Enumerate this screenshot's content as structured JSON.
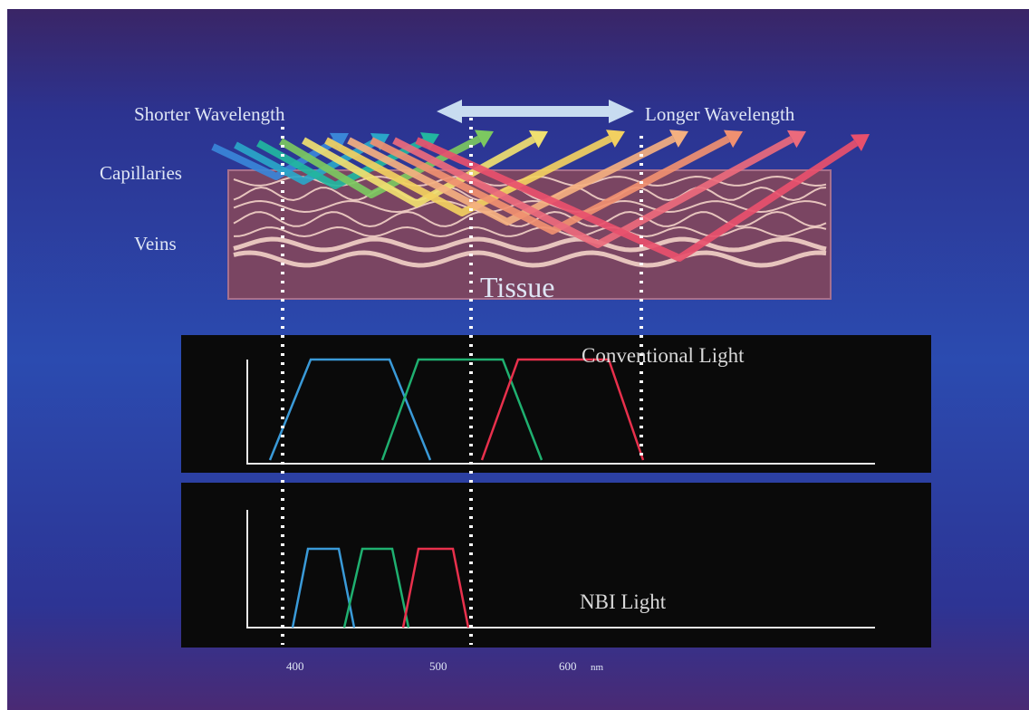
{
  "header": {
    "shorter": "Shorter Wavelength",
    "longer": "Longer Wavelength"
  },
  "layers": {
    "capillaries": "Capillaries",
    "veins": "Veins",
    "tissue": "Tissue"
  },
  "panels": {
    "conventional": "Conventional Light",
    "nbi": "NBI Light"
  },
  "axis": {
    "ticks": [
      "400",
      "500",
      "600"
    ],
    "unit": "nm"
  }
}
